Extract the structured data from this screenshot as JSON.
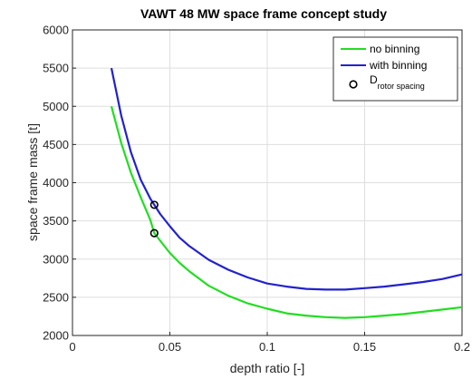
{
  "chart_data": {
    "type": "line",
    "title": "VAWT 48 MW space frame concept study",
    "xlabel": "depth ratio [-]",
    "ylabel": "space frame mass [t]",
    "xlim": [
      0,
      0.2
    ],
    "ylim": [
      2000,
      6000
    ],
    "xticks": [
      0,
      0.05,
      0.1,
      0.15,
      0.2
    ],
    "xtick_labels": [
      "0",
      "0.05",
      "0.1",
      "0.15",
      "0.2"
    ],
    "yticks": [
      2000,
      2500,
      3000,
      3500,
      4000,
      4500,
      5000,
      5500,
      6000
    ],
    "ytick_labels": [
      "2000",
      "2500",
      "3000",
      "3500",
      "4000",
      "4500",
      "5000",
      "5500",
      "6000"
    ],
    "grid": true,
    "legend_position": "top-right",
    "series": [
      {
        "name": "no binning",
        "color": "#22dd22",
        "x": [
          0.02,
          0.025,
          0.03,
          0.035,
          0.04,
          0.042,
          0.045,
          0.05,
          0.055,
          0.06,
          0.07,
          0.08,
          0.09,
          0.1,
          0.11,
          0.12,
          0.13,
          0.14,
          0.15,
          0.16,
          0.17,
          0.18,
          0.19,
          0.2
        ],
        "y": [
          5000,
          4520,
          4130,
          3810,
          3510,
          3340,
          3240,
          3080,
          2950,
          2840,
          2650,
          2520,
          2420,
          2350,
          2290,
          2260,
          2240,
          2230,
          2240,
          2260,
          2280,
          2310,
          2340,
          2370
        ]
      },
      {
        "name": "with binning",
        "color": "#2222cc",
        "x": [
          0.02,
          0.025,
          0.03,
          0.035,
          0.04,
          0.042,
          0.045,
          0.05,
          0.055,
          0.06,
          0.07,
          0.08,
          0.09,
          0.1,
          0.11,
          0.12,
          0.13,
          0.14,
          0.15,
          0.16,
          0.17,
          0.18,
          0.19,
          0.2
        ],
        "y": [
          5500,
          4880,
          4400,
          4040,
          3790,
          3710,
          3590,
          3430,
          3280,
          3170,
          2990,
          2860,
          2760,
          2680,
          2640,
          2610,
          2600,
          2600,
          2620,
          2640,
          2670,
          2700,
          2740,
          2800
        ]
      }
    ],
    "markers": {
      "name": "D",
      "name_subscript": "rotor spacing",
      "color": "#000000",
      "points": [
        {
          "x": 0.042,
          "y": 3710
        },
        {
          "x": 0.042,
          "y": 3340
        }
      ]
    }
  }
}
